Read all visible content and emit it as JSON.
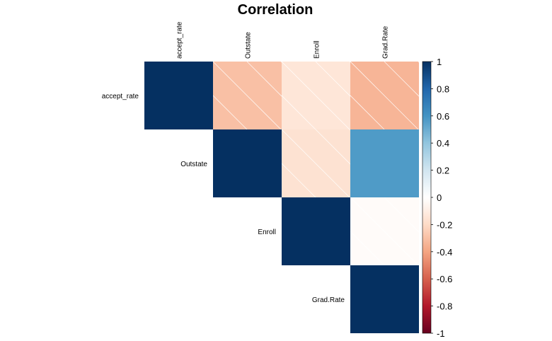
{
  "chart_data": {
    "type": "heatmap",
    "title": "Correlation",
    "variables": [
      "accept_rate",
      "Outstate",
      "Enroll",
      "Grad.Rate"
    ],
    "layout": "upper-triangle",
    "matrix": [
      [
        1,
        -0.3,
        -0.14,
        -0.34
      ],
      [
        -0.3,
        1,
        -0.16,
        0.57
      ],
      [
        -0.14,
        -0.16,
        1,
        -0.02
      ],
      [
        -0.34,
        0.57,
        -0.02,
        1
      ]
    ],
    "negative_hatching": true,
    "colorbar": {
      "range": [
        -1,
        1
      ],
      "ticks": [
        "1",
        "0.8",
        "0.6",
        "0.4",
        "0.2",
        "0",
        "-0.2",
        "-0.4",
        "-0.6",
        "-0.8",
        "-1"
      ],
      "colors": [
        "#67001F",
        "#B2182B",
        "#D6604D",
        "#F4A582",
        "#FDDBC7",
        "#FFFFFF",
        "#D1E5F0",
        "#92C5DE",
        "#4393C3",
        "#2166AC",
        "#053061"
      ],
      "position": "right"
    }
  }
}
